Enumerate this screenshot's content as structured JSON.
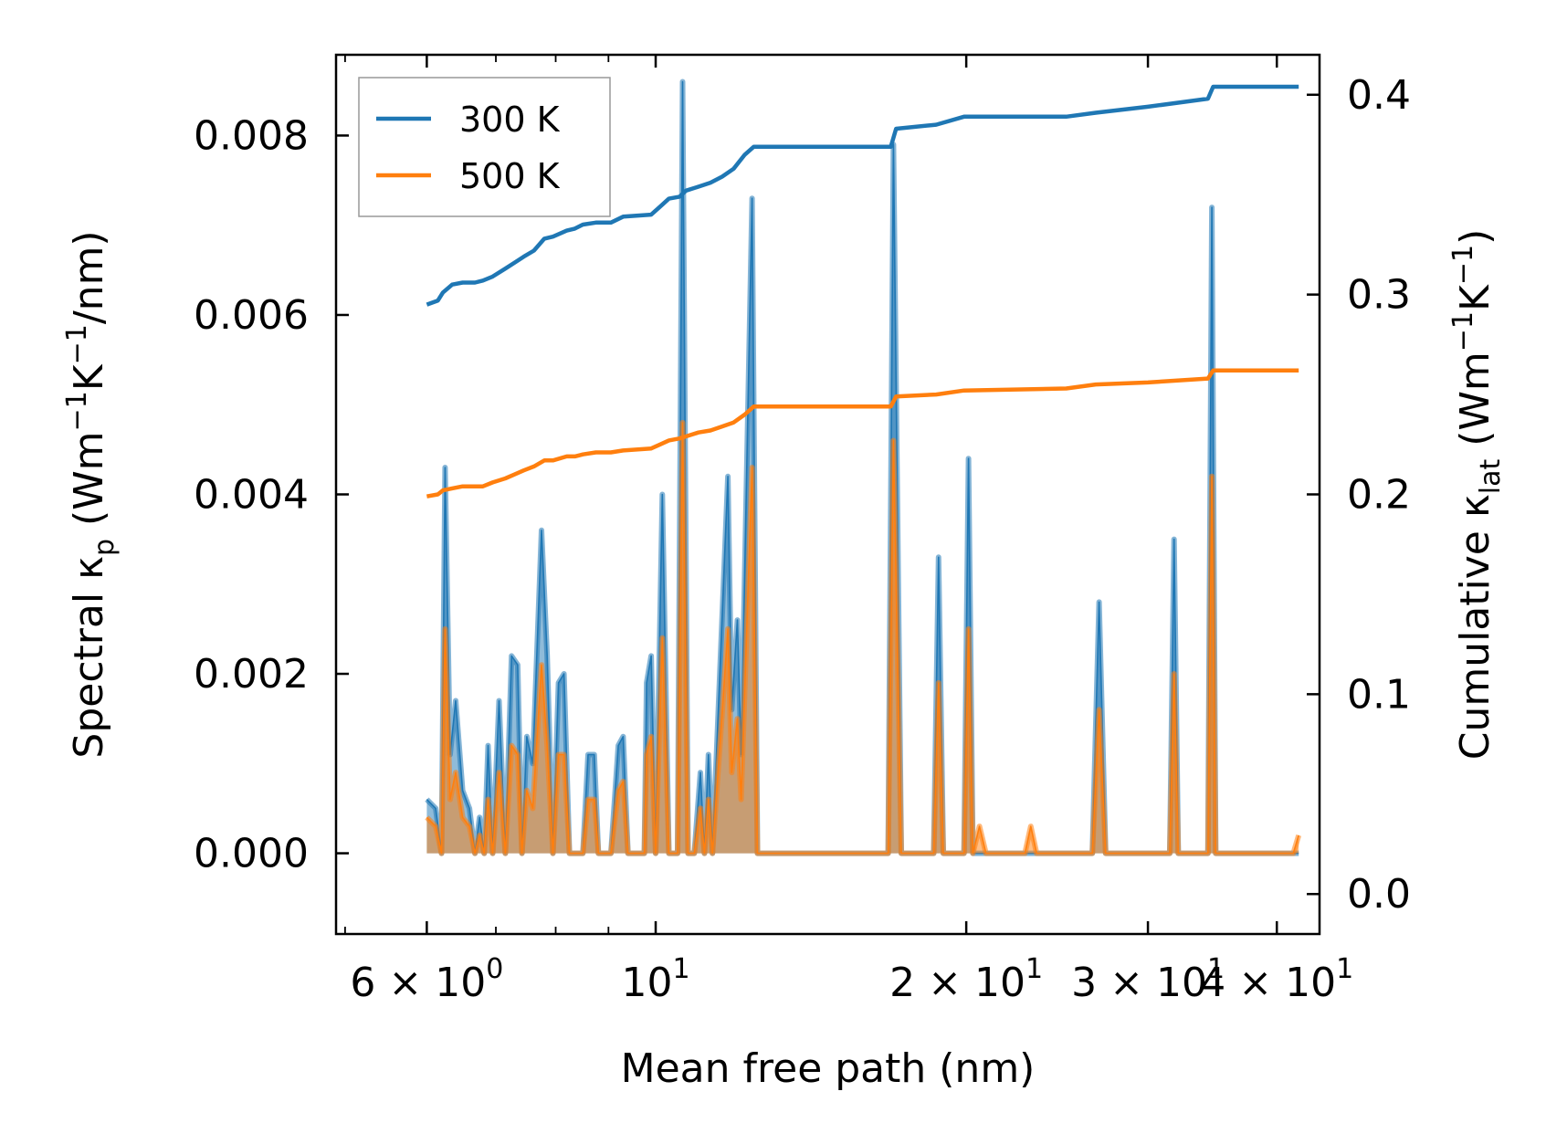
{
  "chart_data": {
    "type": "line",
    "xlabel": "Mean free path (nm)",
    "ylabel_left": {
      "prefix": "Spectral κ",
      "sub": "p",
      "mid": " (Wm",
      "sup1": "−1",
      "mid2": "K",
      "sup2": "−1",
      "suffix": "/nm)"
    },
    "ylabel_right": {
      "prefix": "Cumulative κ",
      "sub": "lat",
      "mid": " (Wm",
      "sup1": "−1",
      "mid2": "K",
      "sup2": "−1",
      "suffix": ")"
    },
    "xscale": "log",
    "xlim": [
      4.9,
      44.0
    ],
    "ylim_left": [
      -0.0009,
      0.0089
    ],
    "ylim_right": [
      -0.02,
      0.42
    ],
    "x_ticks": [
      {
        "value": 6,
        "base": "6 × 10",
        "exp": "0"
      },
      {
        "value": 10,
        "base": "10",
        "exp": "1"
      },
      {
        "value": 20,
        "base": "2 × 10",
        "exp": "1"
      },
      {
        "value": 30,
        "base": "3 × 10",
        "exp": "1"
      },
      {
        "value": 40,
        "base": "4 × 10",
        "exp": "1"
      }
    ],
    "x_minor_ticks": [
      5,
      7,
      8,
      9
    ],
    "y_left_ticks": [
      {
        "value": 0.0,
        "label": "0.000"
      },
      {
        "value": 0.002,
        "label": "0.002"
      },
      {
        "value": 0.004,
        "label": "0.004"
      },
      {
        "value": 0.006,
        "label": "0.006"
      },
      {
        "value": 0.008,
        "label": "0.008"
      }
    ],
    "y_right_ticks": [
      {
        "value": 0.0,
        "label": "0.0"
      },
      {
        "value": 0.1,
        "label": "0.1"
      },
      {
        "value": 0.2,
        "label": "0.2"
      },
      {
        "value": 0.3,
        "label": "0.3"
      },
      {
        "value": 0.4,
        "label": "0.4"
      }
    ],
    "legend": {
      "position": "upper-left",
      "entries": [
        {
          "label": "300 K",
          "color": "#1f77b4"
        },
        {
          "label": "500 K",
          "color": "#ff7f0e"
        }
      ]
    },
    "series": [
      {
        "name": "300 K",
        "color": "#1f77b4",
        "spectral": [
          [
            6.0,
            0.0006
          ],
          [
            6.12,
            0.0005
          ],
          [
            6.2,
            0.0
          ],
          [
            6.25,
            0.0043
          ],
          [
            6.32,
            0.0011
          ],
          [
            6.4,
            0.0017
          ],
          [
            6.5,
            0.0007
          ],
          [
            6.6,
            0.0005
          ],
          [
            6.68,
            0.0
          ],
          [
            6.75,
            0.0004
          ],
          [
            6.82,
            0.0
          ],
          [
            6.88,
            0.0012
          ],
          [
            6.95,
            0.0
          ],
          [
            7.05,
            0.0017
          ],
          [
            7.15,
            0.0
          ],
          [
            7.25,
            0.0022
          ],
          [
            7.35,
            0.0021
          ],
          [
            7.42,
            0.0
          ],
          [
            7.5,
            0.0013
          ],
          [
            7.6,
            0.001
          ],
          [
            7.75,
            0.0036
          ],
          [
            7.85,
            0.0022
          ],
          [
            7.95,
            0.0
          ],
          [
            8.05,
            0.0019
          ],
          [
            8.15,
            0.002
          ],
          [
            8.25,
            0.0
          ],
          [
            8.5,
            0.0
          ],
          [
            8.6,
            0.0011
          ],
          [
            8.72,
            0.0011
          ],
          [
            8.8,
            0.0
          ],
          [
            9.05,
            0.0
          ],
          [
            9.2,
            0.0012
          ],
          [
            9.3,
            0.0013
          ],
          [
            9.4,
            0.0
          ],
          [
            9.75,
            0.0
          ],
          [
            9.8,
            0.0019
          ],
          [
            9.9,
            0.0022
          ],
          [
            10.0,
            0.0
          ],
          [
            10.15,
            0.004
          ],
          [
            10.3,
            0.0
          ],
          [
            10.5,
            0.0
          ],
          [
            10.62,
            0.0086
          ],
          [
            10.75,
            0.0
          ],
          [
            10.9,
            0.0
          ],
          [
            11.05,
            0.0009
          ],
          [
            11.15,
            0.0
          ],
          [
            11.25,
            0.0011
          ],
          [
            11.35,
            0.0
          ],
          [
            11.75,
            0.0042
          ],
          [
            11.85,
            0.0016
          ],
          [
            12.0,
            0.0026
          ],
          [
            12.1,
            0.0011
          ],
          [
            12.4,
            0.0073
          ],
          [
            12.55,
            0.0
          ],
          [
            16.8,
            0.0
          ],
          [
            17.0,
            0.0079
          ],
          [
            17.3,
            0.0
          ],
          [
            18.6,
            0.0
          ],
          [
            18.8,
            0.0033
          ],
          [
            19.0,
            0.0
          ],
          [
            19.9,
            0.0
          ],
          [
            20.1,
            0.0044
          ],
          [
            20.3,
            0.0
          ],
          [
            26.5,
            0.0
          ],
          [
            26.9,
            0.0028
          ],
          [
            27.3,
            0.0
          ],
          [
            31.5,
            0.0
          ],
          [
            31.8,
            0.0035
          ],
          [
            32.1,
            0.0
          ],
          [
            34.3,
            0.0
          ],
          [
            34.6,
            0.0072
          ],
          [
            34.9,
            0.0
          ],
          [
            42.0,
            0.0
          ]
        ],
        "cumulative": [
          [
            6.0,
            0.295
          ],
          [
            6.15,
            0.297
          ],
          [
            6.22,
            0.301
          ],
          [
            6.35,
            0.305
          ],
          [
            6.5,
            0.306
          ],
          [
            6.68,
            0.306
          ],
          [
            6.8,
            0.307
          ],
          [
            6.95,
            0.309
          ],
          [
            7.15,
            0.313
          ],
          [
            7.3,
            0.316
          ],
          [
            7.45,
            0.319
          ],
          [
            7.62,
            0.322
          ],
          [
            7.8,
            0.328
          ],
          [
            7.95,
            0.329
          ],
          [
            8.2,
            0.332
          ],
          [
            8.35,
            0.333
          ],
          [
            8.5,
            0.335
          ],
          [
            8.75,
            0.336
          ],
          [
            9.05,
            0.336
          ],
          [
            9.3,
            0.339
          ],
          [
            9.9,
            0.34
          ],
          [
            10.1,
            0.344
          ],
          [
            10.3,
            0.348
          ],
          [
            10.55,
            0.349
          ],
          [
            10.7,
            0.352
          ],
          [
            11.0,
            0.354
          ],
          [
            11.3,
            0.356
          ],
          [
            11.6,
            0.359
          ],
          [
            11.9,
            0.363
          ],
          [
            12.2,
            0.37
          ],
          [
            12.45,
            0.374
          ],
          [
            16.9,
            0.374
          ],
          [
            17.1,
            0.383
          ],
          [
            18.7,
            0.385
          ],
          [
            19.9,
            0.389
          ],
          [
            25.0,
            0.389
          ],
          [
            26.7,
            0.391
          ],
          [
            30.0,
            0.394
          ],
          [
            34.3,
            0.398
          ],
          [
            34.7,
            0.404
          ],
          [
            42.0,
            0.404
          ]
        ]
      },
      {
        "name": "500 K",
        "color": "#ff7f0e",
        "spectral": [
          [
            6.0,
            0.0004
          ],
          [
            6.12,
            0.0003
          ],
          [
            6.2,
            0.0
          ],
          [
            6.25,
            0.0025
          ],
          [
            6.32,
            0.0006
          ],
          [
            6.4,
            0.0009
          ],
          [
            6.5,
            0.0004
          ],
          [
            6.6,
            0.0003
          ],
          [
            6.68,
            0.0
          ],
          [
            6.75,
            0.0002
          ],
          [
            6.82,
            0.0
          ],
          [
            6.88,
            0.0006
          ],
          [
            6.95,
            0.0
          ],
          [
            7.05,
            0.0009
          ],
          [
            7.15,
            0.0
          ],
          [
            7.25,
            0.0012
          ],
          [
            7.35,
            0.0011
          ],
          [
            7.42,
            0.0
          ],
          [
            7.5,
            0.0007
          ],
          [
            7.6,
            0.0005
          ],
          [
            7.75,
            0.0021
          ],
          [
            7.85,
            0.0012
          ],
          [
            7.95,
            0.0
          ],
          [
            8.05,
            0.0011
          ],
          [
            8.15,
            0.0011
          ],
          [
            8.25,
            0.0
          ],
          [
            8.5,
            0.0
          ],
          [
            8.6,
            0.0006
          ],
          [
            8.72,
            0.0006
          ],
          [
            8.8,
            0.0
          ],
          [
            9.05,
            0.0
          ],
          [
            9.2,
            0.0007
          ],
          [
            9.3,
            0.0008
          ],
          [
            9.4,
            0.0
          ],
          [
            9.75,
            0.0
          ],
          [
            9.8,
            0.0011
          ],
          [
            9.9,
            0.0013
          ],
          [
            10.0,
            0.0
          ],
          [
            10.15,
            0.0024
          ],
          [
            10.3,
            0.0
          ],
          [
            10.5,
            0.0
          ],
          [
            10.62,
            0.0048
          ],
          [
            10.75,
            0.0
          ],
          [
            10.9,
            0.0
          ],
          [
            11.05,
            0.0005
          ],
          [
            11.15,
            0.0
          ],
          [
            11.25,
            0.0006
          ],
          [
            11.35,
            0.0
          ],
          [
            11.75,
            0.0025
          ],
          [
            11.85,
            0.0009
          ],
          [
            12.0,
            0.0015
          ],
          [
            12.1,
            0.0006
          ],
          [
            12.4,
            0.0043
          ],
          [
            12.55,
            0.0
          ],
          [
            16.8,
            0.0
          ],
          [
            17.0,
            0.0046
          ],
          [
            17.3,
            0.0
          ],
          [
            18.6,
            0.0
          ],
          [
            18.8,
            0.0019
          ],
          [
            19.0,
            0.0
          ],
          [
            19.9,
            0.0
          ],
          [
            20.1,
            0.0025
          ],
          [
            20.3,
            0.0
          ],
          [
            20.6,
            0.0003
          ],
          [
            20.9,
            0.0
          ],
          [
            22.8,
            0.0
          ],
          [
            23.1,
            0.0003
          ],
          [
            23.4,
            0.0
          ],
          [
            26.5,
            0.0
          ],
          [
            26.9,
            0.0016
          ],
          [
            27.3,
            0.0
          ],
          [
            31.5,
            0.0
          ],
          [
            31.8,
            0.002
          ],
          [
            32.1,
            0.0
          ],
          [
            34.3,
            0.0
          ],
          [
            34.6,
            0.0042
          ],
          [
            34.9,
            0.0
          ],
          [
            41.5,
            0.0
          ],
          [
            42.0,
            0.0002
          ]
        ],
        "cumulative": [
          [
            6.0,
            0.199
          ],
          [
            6.15,
            0.2
          ],
          [
            6.22,
            0.202
          ],
          [
            6.35,
            0.203
          ],
          [
            6.5,
            0.204
          ],
          [
            6.8,
            0.204
          ],
          [
            6.95,
            0.206
          ],
          [
            7.15,
            0.208
          ],
          [
            7.3,
            0.21
          ],
          [
            7.45,
            0.212
          ],
          [
            7.62,
            0.214
          ],
          [
            7.8,
            0.217
          ],
          [
            7.95,
            0.217
          ],
          [
            8.2,
            0.219
          ],
          [
            8.35,
            0.219
          ],
          [
            8.5,
            0.22
          ],
          [
            8.75,
            0.221
          ],
          [
            9.05,
            0.221
          ],
          [
            9.3,
            0.222
          ],
          [
            9.9,
            0.223
          ],
          [
            10.1,
            0.225
          ],
          [
            10.3,
            0.227
          ],
          [
            10.55,
            0.228
          ],
          [
            10.7,
            0.229
          ],
          [
            11.0,
            0.231
          ],
          [
            11.3,
            0.232
          ],
          [
            11.6,
            0.234
          ],
          [
            11.9,
            0.236
          ],
          [
            12.2,
            0.24
          ],
          [
            12.45,
            0.244
          ],
          [
            16.9,
            0.244
          ],
          [
            17.1,
            0.249
          ],
          [
            18.7,
            0.25
          ],
          [
            19.9,
            0.252
          ],
          [
            25.0,
            0.253
          ],
          [
            26.7,
            0.255
          ],
          [
            30.0,
            0.256
          ],
          [
            34.3,
            0.258
          ],
          [
            34.7,
            0.262
          ],
          [
            42.0,
            0.262
          ]
        ]
      }
    ]
  }
}
